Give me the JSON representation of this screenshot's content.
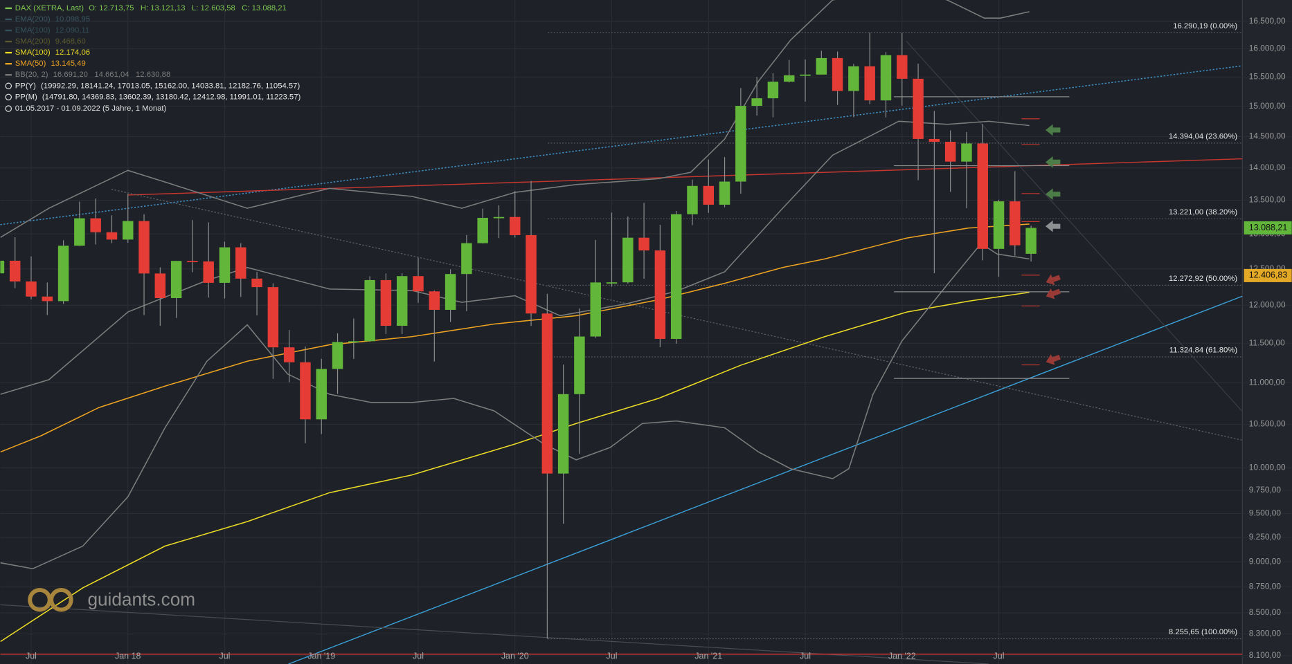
{
  "chart_data": {
    "type": "candlestick",
    "log_y": true,
    "grid": true,
    "up_color": "#62b73a",
    "down_color": "#e53d36",
    "ylim": [
      8025,
      16900
    ],
    "yticks": [
      {
        "value": 8100,
        "label": "8.100,00"
      },
      {
        "value": 8300,
        "label": "8.300,00"
      },
      {
        "value": 8500,
        "label": "8.500,00"
      },
      {
        "value": 8750,
        "label": "8.750,00"
      },
      {
        "value": 9000,
        "label": "9.000,00"
      },
      {
        "value": 9250,
        "label": "9.250,00"
      },
      {
        "value": 9500,
        "label": "9.500,00"
      },
      {
        "value": 9750,
        "label": "9.750,00"
      },
      {
        "value": 10000,
        "label": "10.000,00"
      },
      {
        "value": 10500,
        "label": "10.500,00"
      },
      {
        "value": 11000,
        "label": "11.000,00"
      },
      {
        "value": 11500,
        "label": "11.500,00"
      },
      {
        "value": 12000,
        "label": "12.000,00"
      },
      {
        "value": 12500,
        "label": "12.500,00"
      },
      {
        "value": 13000,
        "label": "13.000,00"
      },
      {
        "value": 13500,
        "label": "13.500,00"
      },
      {
        "value": 14000,
        "label": "14.000,00"
      },
      {
        "value": 14500,
        "label": "14.500,00"
      },
      {
        "value": 15000,
        "label": "15.000,00"
      },
      {
        "value": 15500,
        "label": "15.500,00"
      },
      {
        "value": 16000,
        "label": "16.000,00"
      },
      {
        "value": 16500,
        "label": "16.500,00"
      }
    ],
    "categories": [
      null,
      null,
      "Jul",
      null,
      null,
      null,
      null,
      null,
      "Jan 18",
      null,
      null,
      null,
      null,
      null,
      "Jul",
      null,
      null,
      null,
      null,
      null,
      "Jan '19",
      null,
      null,
      null,
      null,
      null,
      "Jul",
      null,
      null,
      null,
      null,
      null,
      "Jan '20",
      null,
      null,
      null,
      null,
      null,
      "Jul",
      null,
      null,
      null,
      null,
      null,
      "Jan '21",
      null,
      null,
      null,
      null,
      null,
      "Jul",
      null,
      null,
      null,
      null,
      null,
      "Jan '22",
      null,
      null,
      null,
      null,
      null,
      "Jul",
      null,
      null
    ],
    "open": [
      12438,
      12615,
      12325,
      12118,
      12056,
      12829,
      13230,
      13024,
      12918,
      13189,
      12436,
      12097,
      12612,
      12605,
      12306,
      12806,
      12364,
      12247,
      11447,
      11257,
      10559,
      11173,
      11516,
      11526,
      12344,
      11727,
      12399,
      12189,
      11939,
      12428,
      12866,
      13236,
      13249,
      12982,
      11890,
      9936,
      10862,
      11587,
      12311,
      12313,
      12945,
      12761,
      11556,
      13291,
      13719,
      13433,
      13786,
      15008,
      15136,
      15421,
      15531,
      15544,
      15835,
      15261,
      15688,
      15100,
      15885,
      15471,
      14461,
      14415,
      14098,
      14388,
      12784,
      13484,
      12713.75
    ],
    "high": [
      12841,
      12951,
      12676,
      12310,
      12908,
      13479,
      13526,
      13274,
      13597,
      13290,
      12522,
      12613,
      13204,
      13170,
      12887,
      12865,
      12458,
      12300,
      11671,
      11458,
      11300,
      11630,
      11823,
      12396,
      12436,
      12438,
      12656,
      12200,
      12494,
      12983,
      13374,
      13425,
      13640,
      13795,
      12156,
      11228,
      11958,
      12913,
      13314,
      13256,
      13460,
      13134,
      13339,
      13815,
      14131,
      14169,
      15311,
      15502,
      15569,
      15803,
      15810,
      15966,
      15950,
      15731,
      16290,
      15940,
      16286,
      15736,
      14925,
      14600,
      14575,
      14706,
      13508,
      13948,
      13121.13
    ],
    "low": [
      12432,
      12234,
      12081,
      11869,
      12018,
      12825,
      12847,
      12866,
      12871,
      11868,
      11727,
      11831,
      12453,
      12104,
      12093,
      12113,
      11865,
      11051,
      11009,
      10279,
      10386,
      10864,
      11299,
      11519,
      11620,
      11620,
      12033,
      11266,
      11778,
      11920,
      12861,
      12940,
      12948,
      11725,
      8256,
      9392,
      10160,
      11568,
      12253,
      12296,
      12362,
      11450,
      11494,
      13128,
      13311,
      13395,
      13600,
      14844,
      14816,
      15406,
      15079,
      15543,
      15024,
      14819,
      15039,
      14814,
      15012,
      13807,
      12439,
      13628,
      13381,
      12621,
      12390,
      12686,
      12603.58
    ],
    "close": [
      12615,
      12325,
      12118,
      12056,
      12829,
      13230,
      13024,
      12918,
      13189,
      12436,
      12097,
      12612,
      12605,
      12306,
      12806,
      12364,
      12247,
      11447,
      11257,
      10559,
      11173,
      11516,
      11526,
      12344,
      11727,
      12399,
      12189,
      11939,
      12428,
      12866,
      13236,
      13249,
      12982,
      11890,
      9936,
      10862,
      11587,
      12311,
      12313,
      12945,
      12761,
      11556,
      13291,
      13719,
      13433,
      13786,
      15008,
      15136,
      15421,
      15531,
      15544,
      15835,
      15261,
      15688,
      15100,
      15885,
      15471,
      14461,
      14415,
      14098,
      14388,
      12784,
      13484,
      12835,
      13088.21
    ],
    "legend": [
      {
        "name": "DAX (XETRA, Last)",
        "text": "O: 12.713,75   H: 13.121,13   L: 12.603,58   C: 13.088,21",
        "color": "#7ec850"
      },
      {
        "name": "EMA(200)",
        "text": "10.098,95",
        "color": "#3b5863"
      },
      {
        "name": "EMA(100)",
        "text": "12.090,11",
        "color": "#34515b"
      },
      {
        "name": "SMA(200)",
        "text": "9.468,60",
        "color": "#5c5b2f"
      },
      {
        "name": "SMA(100)",
        "text": "12.174,06",
        "color": "#ecdc26",
        "lines": [
          {
            "x": [
              0.1,
              5.2,
              10.3,
              15.4,
              20.5,
              25.6,
              32,
              35.8,
              40.9,
              46,
              51.2,
              56.3,
              60.1,
              63.9
            ],
            "values": [
              8230,
              8740,
              9160,
              9415,
              9725,
              9920,
              10270,
              10510,
              10810,
              11220,
              11585,
              11910,
              12055,
              12175
            ]
          }
        ]
      },
      {
        "name": "SMA(50)",
        "text": "13.145,49",
        "color": "#eda322",
        "lines": [
          {
            "x": [
              0.1,
              2.6,
              6.2,
              10.3,
              15.4,
              20.5,
              25.6,
              30.7,
              35.8,
              40.9,
              45,
              48.6,
              51.2,
              56.3,
              60.1,
              63.9
            ],
            "values": [
              10180,
              10365,
              10700,
              10960,
              11270,
              11480,
              11585,
              11750,
              11860,
              12075,
              12300,
              12520,
              12640,
              12940,
              13085,
              13145
            ]
          }
        ]
      },
      {
        "name": "BB(20, 2)",
        "text": "16.691,20   14.661,04   12.630,88",
        "color": "#7d7d7d",
        "lines": [
          {
            "x": [
              0.1,
              3.1,
              8,
              10.3,
              15.4,
              20.5,
              25.6,
              28.7,
              32,
              35.8,
              40.9,
              42.9,
              45,
              47.1,
              49.1,
              51.7,
              56,
              58.8,
              61.1,
              62.1,
              63.9
            ],
            "values": [
              12950,
              13380,
              13960,
              13780,
              13380,
              13680,
              13560,
              13380,
              13620,
              13740,
              13830,
              13930,
              14460,
              15430,
              16160,
              16900,
              17135,
              16900,
              16560,
              16560,
              16680
            ]
          },
          {
            "x": [
              0.1,
              3.1,
              8,
              12.9,
              15.4,
              20.5,
              25.6,
              28.7,
              32,
              34.8,
              38.9,
              42,
              45,
              48.6,
              51.7,
              55.8,
              58.8,
              61.4,
              63.9
            ],
            "values": [
              10860,
              11040,
              11910,
              12340,
              12520,
              12220,
              12200,
              12040,
              12130,
              11860,
              12020,
              12190,
              12460,
              13380,
              14200,
              14750,
              14700,
              14750,
              14680
            ]
          },
          {
            "x": [
              0.1,
              2.1,
              5.2,
              8,
              10.3,
              12.9,
              15.4,
              17.9,
              20.5,
              23.1,
              25.6,
              28.2,
              30.7,
              33.8,
              35.8,
              37.9,
              39.9,
              42,
              45,
              47.1,
              49.1,
              51.7,
              52.7,
              54.2,
              56,
              58.8,
              60.9,
              61.9,
              63.9
            ],
            "values": [
              8990,
              8930,
              9160,
              9680,
              10460,
              11270,
              11740,
              11110,
              10860,
              10760,
              10760,
              10810,
              10660,
              10270,
              10090,
              10230,
              10510,
              10540,
              10460,
              10180,
              9990,
              9880,
              9990,
              10860,
              11530,
              12280,
              12860,
              12710,
              12640
            ]
          }
        ]
      },
      {
        "name": "PP(Y)",
        "text": "(19992.29, 18141.24, 17013.05, 15162.00, 14033.81, 12182.76, 11054.57)",
        "color": "#e6e6e6",
        "line_color": "#8c8c8c",
        "levels": [
          19992.29,
          18141.24,
          17013.05,
          15162.0,
          14033.81,
          12182.76,
          11054.57
        ]
      },
      {
        "name": "PP(M)",
        "text": "(14791.80, 14369.83, 13602.39, 13180.42, 12412.98, 11991.01, 11223.57)",
        "color": "#e6e6e6",
        "line_color": "#c8372f",
        "levels": [
          14791.8,
          14369.83,
          13602.39,
          13180.42,
          12412.98,
          11991.01,
          11223.57
        ]
      }
    ],
    "range_text": "01.05.2017 - 01.09.2022   (5 Jahre, 1 Monat)",
    "fib_levels": [
      {
        "value": 16290.19,
        "label": "16.290,19 (0.00%)"
      },
      {
        "value": 14394.04,
        "label": "14.394,04 (23.60%)"
      },
      {
        "value": 13221.0,
        "label": "13.221,00 (38.20%)"
      },
      {
        "value": 12272.92,
        "label": "12.272,92 (50.00%)"
      },
      {
        "value": 11324.84,
        "label": "11.324,84 (61.80%)"
      },
      {
        "value": 8255.65,
        "label": "8.255,65 (100.00%)"
      }
    ],
    "price_markers": [
      {
        "value": 13088.21,
        "label": "13.088,21",
        "color": "#62b73a"
      },
      {
        "value": 12406.83,
        "label": "12.406,83",
        "color": "#e3a826"
      }
    ],
    "watermark": "guidants.com"
  }
}
